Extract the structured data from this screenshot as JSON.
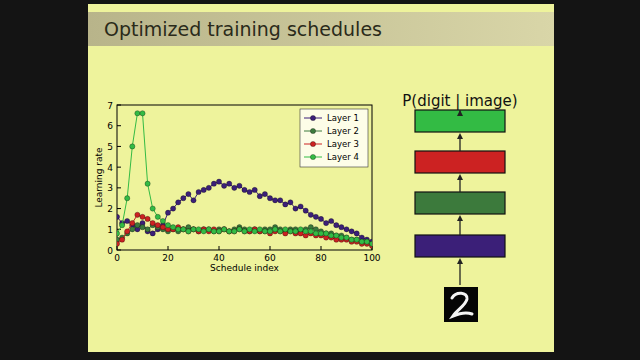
{
  "slide_title": "Optimized training schedules",
  "diagram": {
    "output_label": "P(digit | image)"
  },
  "chart_data": {
    "type": "line",
    "x_label": "Schedule index",
    "y_label": "Learning rate",
    "x": [
      0,
      2,
      4,
      6,
      8,
      10,
      12,
      14,
      16,
      18,
      20,
      22,
      24,
      26,
      28,
      30,
      32,
      34,
      36,
      38,
      40,
      42,
      44,
      46,
      48,
      50,
      52,
      54,
      56,
      58,
      60,
      62,
      64,
      66,
      68,
      70,
      72,
      74,
      76,
      78,
      80,
      82,
      84,
      86,
      88,
      90,
      92,
      94,
      96,
      98,
      100
    ],
    "xlim": [
      0,
      100
    ],
    "xticks": [
      0,
      20,
      40,
      60,
      80,
      100
    ],
    "ylim": [
      0,
      7
    ],
    "yticks": [
      0,
      1,
      2,
      3,
      4,
      5,
      6,
      7
    ],
    "grid": false,
    "legend": "upper-right",
    "marker": "circle",
    "line_style": "solid",
    "series": [
      {
        "name": "Layer 1",
        "color": "#3b1f78",
        "values": [
          1.6,
          1.3,
          1.4,
          1.2,
          1.0,
          1.3,
          0.9,
          0.8,
          1.0,
          1.2,
          1.8,
          2.0,
          2.3,
          2.5,
          2.7,
          2.4,
          2.8,
          2.9,
          3.0,
          3.2,
          3.3,
          3.1,
          3.2,
          3.0,
          3.1,
          2.9,
          2.8,
          2.9,
          2.6,
          2.7,
          2.5,
          2.4,
          2.4,
          2.2,
          2.3,
          2.0,
          2.1,
          1.9,
          1.7,
          1.6,
          1.5,
          1.3,
          1.4,
          1.2,
          1.1,
          1.0,
          0.9,
          0.8,
          0.6,
          0.5,
          0.4
        ]
      },
      {
        "name": "Layer 2",
        "color": "#3c7a3c",
        "values": [
          0.5,
          0.6,
          0.8,
          1.0,
          1.2,
          1.1,
          1.0,
          1.2,
          1.1,
          1.0,
          0.9,
          1.0,
          0.9,
          1.0,
          1.1,
          1.0,
          0.9,
          1.0,
          1.0,
          0.9,
          1.0,
          1.0,
          0.9,
          1.0,
          1.1,
          1.0,
          0.9,
          1.0,
          0.9,
          1.0,
          1.0,
          1.1,
          1.0,
          0.9,
          1.0,
          1.0,
          0.9,
          1.0,
          1.1,
          1.0,
          0.9,
          0.8,
          0.8,
          0.7,
          0.7,
          0.6,
          0.5,
          0.5,
          0.4,
          0.4,
          0.3
        ]
      },
      {
        "name": "Layer 3",
        "color": "#cc2222",
        "values": [
          0.3,
          0.5,
          0.9,
          1.3,
          1.7,
          1.6,
          1.5,
          1.3,
          1.2,
          1.1,
          1.0,
          1.0,
          1.1,
          1.0,
          0.9,
          1.0,
          0.9,
          1.0,
          0.9,
          1.0,
          0.9,
          1.0,
          0.9,
          0.9,
          1.0,
          0.9,
          0.9,
          1.0,
          0.9,
          0.9,
          0.8,
          0.9,
          0.9,
          0.8,
          0.9,
          0.8,
          0.8,
          0.7,
          0.8,
          0.7,
          0.7,
          0.6,
          0.6,
          0.5,
          0.5,
          0.5,
          0.4,
          0.4,
          0.3,
          0.3,
          0.2
        ]
      },
      {
        "name": "Layer 4",
        "color": "#33bb44",
        "values": [
          0.8,
          1.2,
          2.5,
          5.0,
          6.6,
          6.6,
          3.2,
          2.0,
          1.6,
          1.4,
          1.2,
          1.1,
          1.0,
          1.0,
          0.9,
          1.0,
          1.0,
          0.9,
          1.0,
          0.9,
          0.9,
          1.0,
          0.9,
          0.9,
          1.0,
          0.9,
          1.0,
          0.9,
          1.0,
          0.9,
          0.9,
          1.0,
          0.9,
          1.0,
          0.9,
          0.9,
          1.0,
          0.9,
          0.9,
          0.8,
          0.8,
          0.8,
          0.7,
          0.7,
          0.6,
          0.6,
          0.5,
          0.5,
          0.4,
          0.4,
          0.3
        ]
      }
    ]
  }
}
